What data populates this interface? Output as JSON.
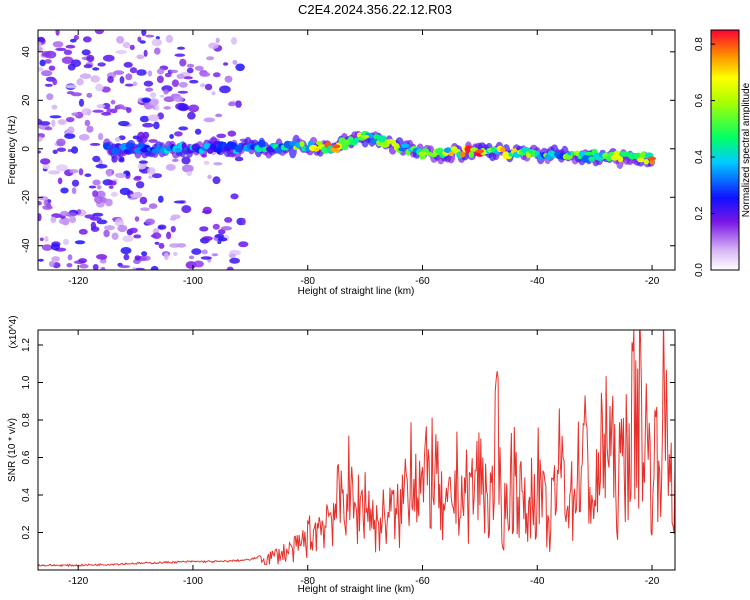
{
  "title": "C2E4.2024.356.22.12.R03",
  "chart_data": [
    {
      "type": "heatmap",
      "xlabel": "Height of straight line (km)",
      "ylabel": "Frequency (Hz)",
      "xlim": [
        -127,
        -16
      ],
      "ylim": [
        -50,
        49
      ],
      "x_ticks": [
        -120,
        -100,
        -80,
        -60,
        -40,
        -20
      ],
      "y_ticks": [
        -40,
        -20,
        0,
        20,
        40
      ],
      "colorbar": {
        "label": "Normalized spectral amplitude",
        "range": [
          0,
          0.85
        ],
        "ticks": [
          "0.0",
          "0.2",
          "0.4",
          "0.6",
          "0.8"
        ]
      },
      "signal_band": [
        {
          "x": -115,
          "freq": 0,
          "amp": 0.3
        },
        {
          "x": -105,
          "freq": 0,
          "amp": 0.4
        },
        {
          "x": -95,
          "freq": 0,
          "amp": 0.35
        },
        {
          "x": -85,
          "freq": 1,
          "amp": 0.45
        },
        {
          "x": -75,
          "freq": 1,
          "amp": 0.8
        },
        {
          "x": -70,
          "freq": 5,
          "amp": 0.6
        },
        {
          "x": -60,
          "freq": -2,
          "amp": 0.6
        },
        {
          "x": -50,
          "freq": -1,
          "amp": 0.8
        },
        {
          "x": -40,
          "freq": -2,
          "amp": 0.55
        },
        {
          "x": -30,
          "freq": -3,
          "amp": 0.55
        },
        {
          "x": -20,
          "freq": -4,
          "amp": 0.8
        }
      ]
    },
    {
      "type": "line",
      "xlabel": "Height of straight line (km)",
      "ylabel": "SNR (10 * v/v)",
      "y_multiplier": "(x10^4)",
      "xlim": [
        -127,
        -16
      ],
      "ylim": [
        0,
        1.28
      ],
      "x_ticks": [
        -120,
        -100,
        -80,
        -60,
        -40,
        -20
      ],
      "y_ticks": [
        "0.2",
        "0.4",
        "0.6",
        "0.8",
        "1.0",
        "1.2"
      ],
      "series": [
        {
          "color": "#e8302a",
          "x": [
            -127,
            -120,
            -110,
            -100,
            -95,
            -90,
            -88,
            -85,
            -82,
            -80,
            -78,
            -76,
            -74,
            -73,
            -72,
            -70,
            -68,
            -66,
            -64,
            -62,
            -60,
            -58,
            -57,
            -56,
            -54,
            -52,
            -50,
            -48,
            -47,
            -46,
            -44,
            -42,
            -40,
            -38,
            -36,
            -34,
            -32,
            -30,
            -28,
            -26,
            -24,
            -22,
            -20,
            -18,
            -16
          ],
          "y": [
            0.02,
            0.02,
            0.03,
            0.04,
            0.04,
            0.05,
            0.07,
            0.12,
            0.16,
            0.25,
            0.33,
            0.45,
            0.52,
            0.67,
            0.43,
            0.55,
            0.32,
            0.44,
            0.4,
            0.88,
            0.6,
            0.8,
            0.5,
            0.38,
            0.65,
            0.55,
            0.74,
            0.48,
            1.0,
            0.36,
            0.78,
            0.4,
            0.7,
            0.3,
            0.82,
            0.52,
            0.94,
            0.48,
            1.1,
            0.62,
            1.06,
            1.28,
            0.7,
            1.2,
            0.55
          ]
        }
      ]
    }
  ]
}
